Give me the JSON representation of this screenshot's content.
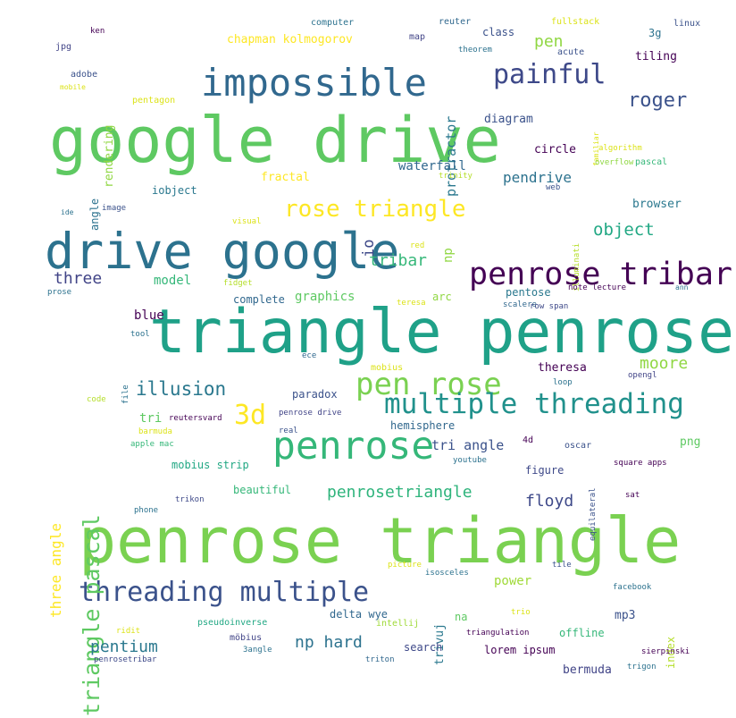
{
  "words": [
    {
      "text": "penrose triangle",
      "color": "#7ad151"
    },
    {
      "text": "google drive",
      "color": "#5ec962"
    },
    {
      "text": "triangle penrose",
      "color": "#1fa188"
    },
    {
      "text": "drive google",
      "color": "#2c728e"
    },
    {
      "text": "impossible",
      "color": "#31688e"
    },
    {
      "text": "penrose tribar",
      "color": "#440154"
    },
    {
      "text": "penrose",
      "color": "#35b779"
    },
    {
      "text": "pen rose",
      "color": "#7ad151"
    },
    {
      "text": "multiple threading",
      "color": "#21918c"
    },
    {
      "text": "threading multiple",
      "color": "#3b528b"
    },
    {
      "text": "painful",
      "color": "#3e4989"
    },
    {
      "text": "rose triangle",
      "color": "#fde725"
    },
    {
      "text": "triangle pascal",
      "color": "#5ec962"
    },
    {
      "text": "roger",
      "color": "#3b528b"
    },
    {
      "text": "object",
      "color": "#22a884"
    },
    {
      "text": "illusion",
      "color": "#2a788e"
    },
    {
      "text": "3d",
      "color": "#fde725"
    },
    {
      "text": "moore",
      "color": "#90d743"
    },
    {
      "text": "three",
      "color": "#414487"
    },
    {
      "text": "tribar",
      "color": "#35b779"
    },
    {
      "text": "penrosetriangle",
      "color": "#2fb47c"
    },
    {
      "text": "pentium",
      "color": "#2a788e"
    },
    {
      "text": "np hard",
      "color": "#2c728e"
    },
    {
      "text": "floyd",
      "color": "#3e4989"
    },
    {
      "text": "three angle",
      "color": "#fde725"
    },
    {
      "text": "pendrive",
      "color": "#2c728e"
    },
    {
      "text": "protractor",
      "color": "#2a788e"
    },
    {
      "text": "io",
      "color": "#3e4989"
    },
    {
      "text": "np",
      "color": "#90d743"
    },
    {
      "text": "tri angle",
      "color": "#3b528b"
    },
    {
      "text": "waterfall",
      "color": "#31688e"
    },
    {
      "text": "pen",
      "color": "#90d743"
    },
    {
      "text": "chapman kolmogorov",
      "color": "#fde725"
    },
    {
      "text": "rendering",
      "color": "#90d743"
    },
    {
      "text": "graphics",
      "color": "#5ec962"
    },
    {
      "text": "model",
      "color": "#35b779"
    },
    {
      "text": "blue",
      "color": "#440154"
    },
    {
      "text": "tri",
      "color": "#5ec962"
    },
    {
      "text": "theresa",
      "color": "#440154"
    },
    {
      "text": "diagram",
      "color": "#3b528b"
    },
    {
      "text": "tiling",
      "color": "#440154"
    },
    {
      "text": "circle",
      "color": "#440154"
    },
    {
      "text": "browser",
      "color": "#2a788e"
    },
    {
      "text": "fractal",
      "color": "#fde725"
    },
    {
      "text": "iobject",
      "color": "#2a788e"
    },
    {
      "text": "angle",
      "color": "#2c728e"
    },
    {
      "text": "complete",
      "color": "#31688e"
    },
    {
      "text": "arc",
      "color": "#90d743"
    },
    {
      "text": "pentose",
      "color": "#2a788e"
    },
    {
      "text": "paradox",
      "color": "#3b528b"
    },
    {
      "text": "hemisphere",
      "color": "#31688e"
    },
    {
      "text": "mobius strip",
      "color": "#22a884"
    },
    {
      "text": "beautiful",
      "color": "#35b779"
    },
    {
      "text": "figure",
      "color": "#3e4989"
    },
    {
      "text": "png",
      "color": "#5ec962"
    },
    {
      "text": "power",
      "color": "#a0da39"
    },
    {
      "text": "delta wye",
      "color": "#31688e"
    },
    {
      "text": "trivuj",
      "color": "#2a788e"
    },
    {
      "text": "na",
      "color": "#5ec962"
    },
    {
      "text": "mp3",
      "color": "#3b528b"
    },
    {
      "text": "index",
      "color": "#b5de2b"
    },
    {
      "text": "offline",
      "color": "#35b779"
    },
    {
      "text": "lorem ipsum",
      "color": "#440154"
    },
    {
      "text": "search",
      "color": "#3e4989"
    },
    {
      "text": "bermuda",
      "color": "#414487"
    },
    {
      "text": "class",
      "color": "#3b528b"
    },
    {
      "text": "3g",
      "color": "#2c728e"
    },
    {
      "text": "computer",
      "color": "#2c728e"
    },
    {
      "text": "reuter",
      "color": "#31688e"
    },
    {
      "text": "fullstack",
      "color": "#dce319"
    },
    {
      "text": "linux",
      "color": "#3b528b"
    },
    {
      "text": "ken",
      "color": "#440154"
    },
    {
      "text": "jpg",
      "color": "#414487"
    },
    {
      "text": "mobile",
      "color": "#dce319"
    },
    {
      "text": "adobe",
      "color": "#3b528b"
    },
    {
      "text": "map",
      "color": "#414487"
    },
    {
      "text": "theorem",
      "color": "#2c728e"
    },
    {
      "text": "acute",
      "color": "#3b528b"
    },
    {
      "text": "pentagon",
      "color": "#dce319"
    },
    {
      "text": "familiar",
      "color": "#dce319"
    },
    {
      "text": "algorithm",
      "color": "#dce319"
    },
    {
      "text": "overflow",
      "color": "#90d743"
    },
    {
      "text": "pascal",
      "color": "#35b779"
    },
    {
      "text": "trinity",
      "color": "#b5de2b"
    },
    {
      "text": "web",
      "color": "#3b528b"
    },
    {
      "text": "illuminati",
      "color": "#b5de2b"
    },
    {
      "text": "ide",
      "color": "#2c728e"
    },
    {
      "text": "image",
      "color": "#3b528b"
    },
    {
      "text": "visual",
      "color": "#dce319"
    },
    {
      "text": "red",
      "color": "#dce319"
    },
    {
      "text": "fidget",
      "color": "#b5de2b"
    },
    {
      "text": "prose",
      "color": "#2c728e"
    },
    {
      "text": "teresa",
      "color": "#dce319"
    },
    {
      "text": "scalere",
      "color": "#31688e"
    },
    {
      "text": "row span",
      "color": "#3e4989"
    },
    {
      "text": "note lecture",
      "color": "#440154"
    },
    {
      "text": "ann",
      "color": "#2c728e"
    },
    {
      "text": "tool",
      "color": "#2c728e"
    },
    {
      "text": "ece",
      "color": "#31688e"
    },
    {
      "text": "mobius",
      "color": "#dce319"
    },
    {
      "text": "loop",
      "color": "#2c728e"
    },
    {
      "text": "opengl",
      "color": "#414487"
    },
    {
      "text": "file",
      "color": "#2c728e"
    },
    {
      "text": "code",
      "color": "#b5de2b"
    },
    {
      "text": "reutersvard",
      "color": "#440154"
    },
    {
      "text": "barmuda",
      "color": "#dce319"
    },
    {
      "text": "apple mac",
      "color": "#35b779"
    },
    {
      "text": "real",
      "color": "#3b528b"
    },
    {
      "text": "penrose drive",
      "color": "#414487"
    },
    {
      "text": "4d",
      "color": "#440154"
    },
    {
      "text": "oscar",
      "color": "#3b528b"
    },
    {
      "text": "youtube",
      "color": "#2c728e"
    },
    {
      "text": "equilateral",
      "color": "#3b528b"
    },
    {
      "text": "square apps",
      "color": "#440154"
    },
    {
      "text": "sat",
      "color": "#440154"
    },
    {
      "text": "trikon",
      "color": "#3e4989"
    },
    {
      "text": "phone",
      "color": "#2c728e"
    },
    {
      "text": "picture",
      "color": "#dce319"
    },
    {
      "text": "isosceles",
      "color": "#2c728e"
    },
    {
      "text": "tile",
      "color": "#3b528b"
    },
    {
      "text": "facebook",
      "color": "#2c728e"
    },
    {
      "text": "trio",
      "color": "#dce319"
    },
    {
      "text": "intellij",
      "color": "#a0da39"
    },
    {
      "text": "pseudoinverse",
      "color": "#22a884"
    },
    {
      "text": "ridit",
      "color": "#dce319"
    },
    {
      "text": "möbius",
      "color": "#414487"
    },
    {
      "text": "3angle",
      "color": "#2c728e"
    },
    {
      "text": "penrosetribar",
      "color": "#3e4989"
    },
    {
      "text": "triangulation",
      "color": "#440154"
    },
    {
      "text": "triton",
      "color": "#31688e"
    },
    {
      "text": "sierpinski",
      "color": "#440154"
    },
    {
      "text": "trigon",
      "color": "#2c728e"
    }
  ]
}
